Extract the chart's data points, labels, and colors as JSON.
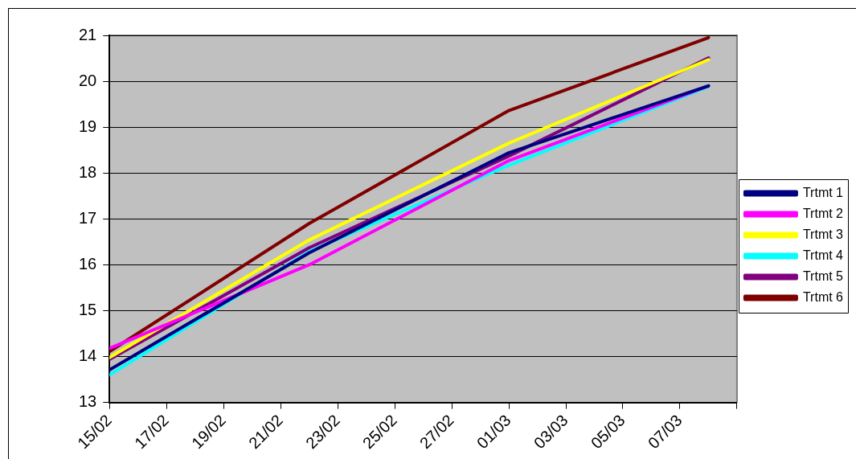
{
  "chart_data": {
    "type": "line",
    "x": [
      "--02-15",
      "--02-22",
      "--03-01",
      "--03-08"
    ],
    "xlim": [
      "--02-15",
      "--03-09"
    ],
    "xticks": [
      {
        "value": "--02-15",
        "label": "15/02"
      },
      {
        "value": "--02-17",
        "label": "17/02"
      },
      {
        "value": "--02-19",
        "label": "19/02"
      },
      {
        "value": "--02-21",
        "label": "21/02"
      },
      {
        "value": "--02-23",
        "label": "23/02"
      },
      {
        "value": "--02-25",
        "label": "25/02"
      },
      {
        "value": "--02-27",
        "label": "27/02"
      },
      {
        "value": "--03-01",
        "label": "01/03"
      },
      {
        "value": "--03-03",
        "label": "03/03"
      },
      {
        "value": "--03-05",
        "label": "05/03"
      },
      {
        "value": "--03-07",
        "label": "07/03"
      },
      {
        "value": "--03-09",
        "label": null
      }
    ],
    "ylim": [
      13,
      21
    ],
    "yticks": [
      13,
      14,
      15,
      16,
      17,
      18,
      19,
      20,
      21
    ],
    "grid": "y",
    "legend": "right",
    "marker": "none",
    "line_style": "solid",
    "series": [
      {
        "name": "Trtmt 1",
        "color": "#000080",
        "values": [
          13.71,
          16.26,
          18.44,
          19.9
        ]
      },
      {
        "name": "Trtmt 2",
        "color": "#ff00ff",
        "values": [
          14.18,
          16.0,
          18.27,
          19.9
        ]
      },
      {
        "name": "Trtmt 3",
        "color": "#ffff00",
        "values": [
          13.98,
          16.54,
          18.65,
          20.47
        ]
      },
      {
        "name": "Trtmt 4",
        "color": "#00ffff",
        "values": [
          13.6,
          16.29,
          18.17,
          19.88
        ]
      },
      {
        "name": "Trtmt 5",
        "color": "#800080",
        "values": [
          13.94,
          16.37,
          18.37,
          20.51
        ]
      },
      {
        "name": "Trtmt 6",
        "color": "#800000",
        "values": [
          14.11,
          16.9,
          19.36,
          20.95
        ]
      }
    ]
  }
}
